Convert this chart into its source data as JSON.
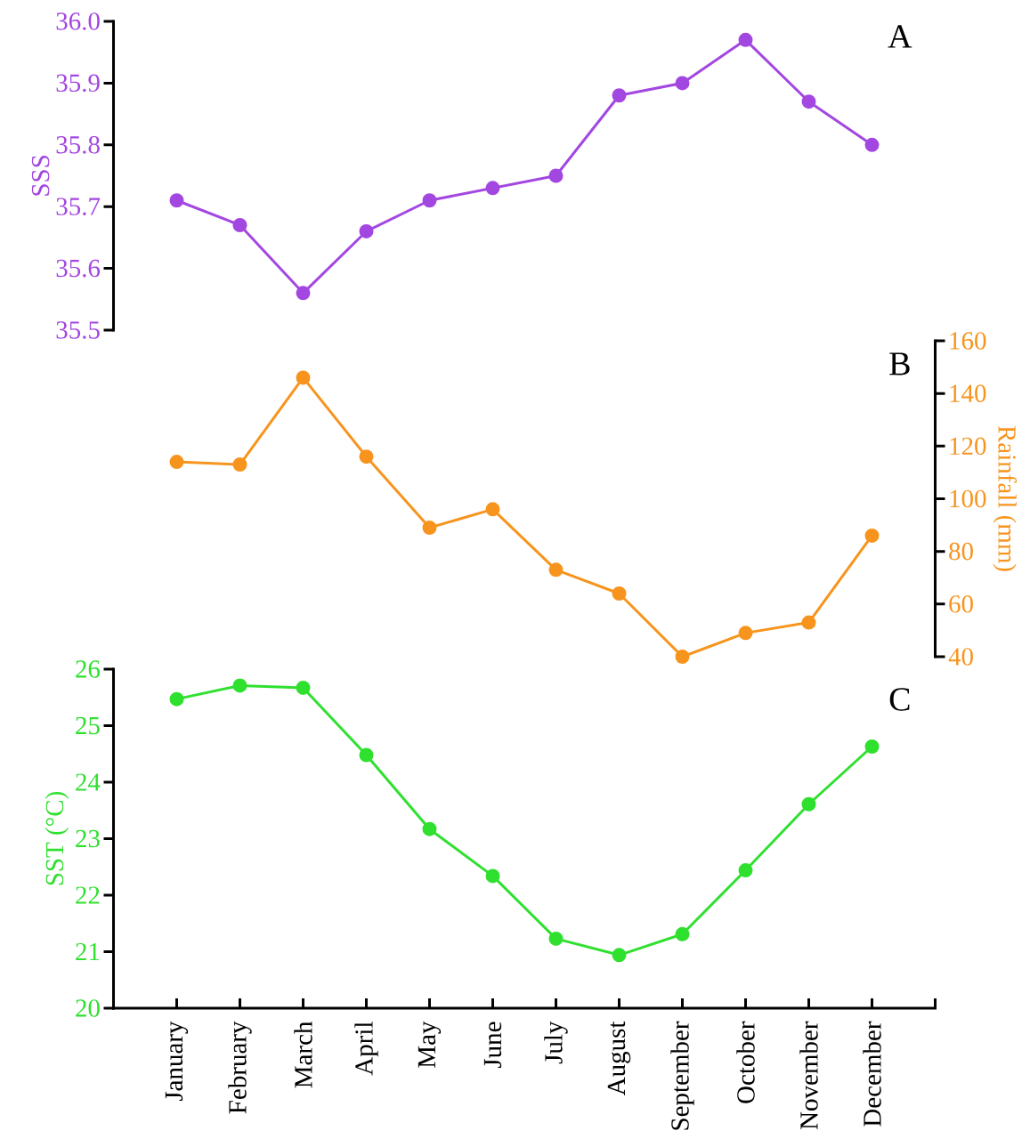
{
  "chart_data": [
    {
      "type": "line",
      "title": "A",
      "ylabel": "SSS",
      "categories": [
        null,
        null,
        null,
        null,
        null,
        null,
        null,
        null,
        null,
        null,
        null,
        null
      ],
      "series": [
        {
          "color": "#a347e1",
          "values": [
            35.71,
            35.67,
            35.56,
            35.66,
            35.71,
            35.73,
            35.75,
            35.88,
            35.9,
            35.97,
            35.87,
            35.8
          ]
        }
      ],
      "ylim": [
        35.5,
        36.0
      ],
      "yticks": [
        35.5,
        35.6,
        35.7,
        35.8,
        35.9,
        {
          "value": 36.0,
          "label": "36.0"
        }
      ],
      "marker": "circle",
      "tick_labels": "y"
    },
    {
      "type": "line",
      "title": "B",
      "ylabel": "Rainfall (mm)",
      "categories": [
        null,
        null,
        null,
        null,
        null,
        null,
        null,
        null,
        null,
        null,
        null,
        null
      ],
      "series": [
        {
          "color": "#f7941d",
          "values": [
            114,
            113,
            146,
            116,
            89,
            96,
            73,
            64,
            40,
            49,
            53,
            86
          ]
        }
      ],
      "ylim": [
        40,
        160
      ],
      "yticks": [
        40,
        60,
        80,
        100,
        120,
        140,
        160
      ],
      "marker": "circle",
      "tick_labels": "y"
    },
    {
      "type": "line",
      "title": "C",
      "ylabel": "SST (°C)",
      "categories": [
        "January",
        "February",
        "March",
        "April",
        "May",
        "June",
        "July",
        "August",
        "September",
        "October",
        "November",
        "December"
      ],
      "series": [
        {
          "color": "#2fe02f",
          "values": [
            25.47,
            25.71,
            25.67,
            24.48,
            23.17,
            22.34,
            21.23,
            20.94,
            21.31,
            22.44,
            23.61,
            24.63
          ]
        }
      ],
      "ylim": [
        20,
        26
      ],
      "yticks": [
        20,
        21,
        22,
        23,
        24,
        25,
        26
      ],
      "marker": "circle"
    }
  ]
}
